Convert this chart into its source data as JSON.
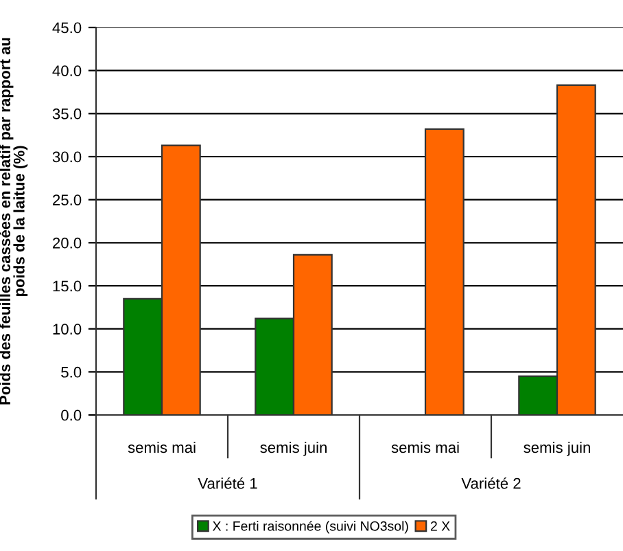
{
  "chart_data": {
    "type": "bar",
    "ylabel": "Poids des feuilles cassées en relatif par rapport au\npoids de la laitue (%)",
    "categories": [
      "semis mai",
      "semis juin",
      "semis mai",
      "semis juin"
    ],
    "series": [
      {
        "name": "X : Ferti raisonnée (suivi NO3sol)",
        "color": "#008000",
        "values": [
          13.5,
          11.2,
          null,
          4.5
        ]
      },
      {
        "name": "2 X",
        "color": "#ff6600",
        "values": [
          31.3,
          18.6,
          33.2,
          38.3
        ]
      }
    ],
    "annotations": [
      "Variété 1",
      "Variété 2"
    ],
    "ylim": [
      0,
      45
    ],
    "yticks": [
      {
        "value": 0,
        "label": "0.0"
      },
      {
        "value": 5,
        "label": "5.0"
      },
      {
        "value": 10,
        "label": "10.0"
      },
      {
        "value": 15,
        "label": "15.0"
      },
      {
        "value": 20,
        "label": "20.0"
      },
      {
        "value": 25,
        "label": "25.0"
      },
      {
        "value": 30,
        "label": "30.0"
      },
      {
        "value": 35,
        "label": "35.0"
      },
      {
        "value": 40,
        "label": "40.0"
      },
      {
        "value": 45,
        "label": "45.0"
      }
    ],
    "grid": "y",
    "legend": "bottom"
  }
}
